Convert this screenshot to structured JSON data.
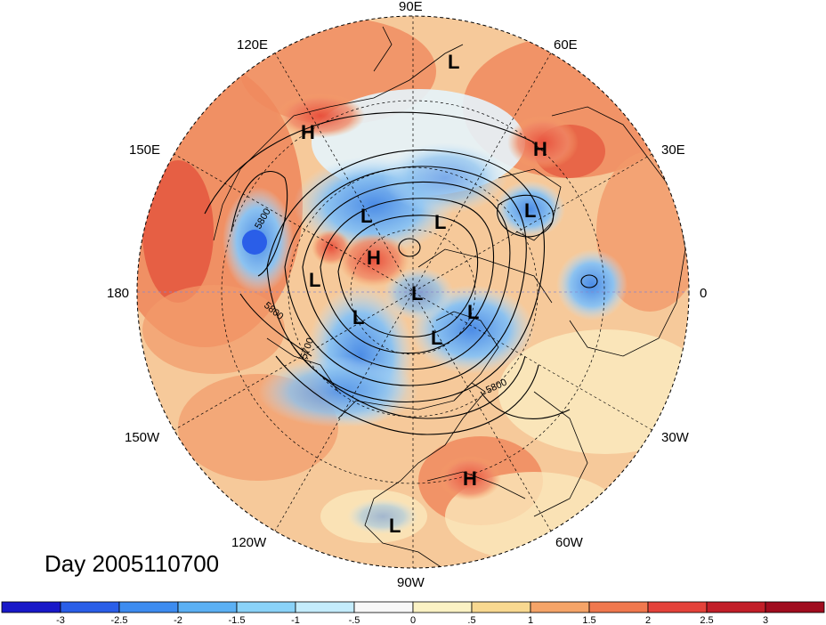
{
  "map": {
    "longitude_labels": {
      "lon_90e": "90E",
      "lon_60e": "60E",
      "lon_30e": "30E",
      "lon_0": "0",
      "lon_30w": "30W",
      "lon_60w": "60W",
      "lon_90w": "90W",
      "lon_120w": "120W",
      "lon_150w": "150W",
      "lon_180": "180",
      "lon_150e": "150E",
      "lon_120e": "120E"
    },
    "contour_labels": [
      "5800",
      "5800",
      "5700",
      "5800"
    ],
    "pressure_systems": {
      "high_siberia": "H",
      "high_europe": "H",
      "high_arctic": "H",
      "high_atlantic": "H",
      "low_arctic_top": "L",
      "low_east_siberia": "L",
      "low_arctic_center": "L",
      "low_scandinavia": "L",
      "low_bering": "L",
      "low_pole": "L",
      "low_alaska": "L",
      "low_greenland": "L",
      "low_baffin": "L",
      "low_mexico": "L"
    }
  },
  "caption": {
    "day": "Day 2005110700"
  },
  "colorbar": {
    "colors": [
      "#1818c8",
      "#2a5ee8",
      "#3d8cf0",
      "#5bb0f4",
      "#8ad2f8",
      "#c4ecfc",
      "#f7f7f7",
      "#fbf2c4",
      "#f8d890",
      "#f5a468",
      "#f0784e",
      "#e4423a",
      "#c21e28",
      "#a00c1e"
    ],
    "tick_labels": [
      "-3",
      "-2.5",
      "-2",
      "-1.5",
      "-1",
      "-.5",
      "0",
      ".5",
      "1",
      "1.5",
      "2",
      "2.5",
      "3"
    ]
  }
}
